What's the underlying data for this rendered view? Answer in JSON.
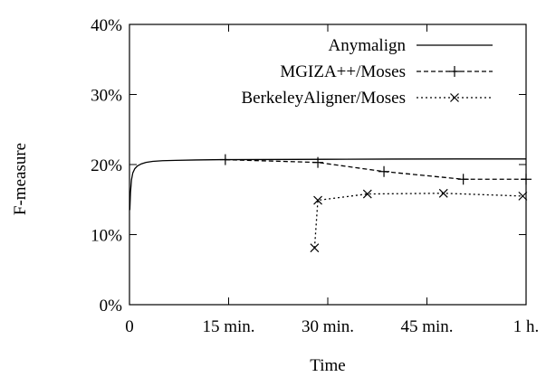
{
  "chart_data": {
    "type": "line",
    "xlabel": "Time",
    "ylabel": "F-measure",
    "xlim": [
      0,
      60
    ],
    "ylim": [
      0,
      40
    ],
    "x_unit": "minutes",
    "y_unit": "percent",
    "grid": false,
    "legend_position": "top-right",
    "x_ticks": [
      {
        "value": 0,
        "label": "0"
      },
      {
        "value": 15,
        "label": "15 min."
      },
      {
        "value": 30,
        "label": "30 min."
      },
      {
        "value": 45,
        "label": "45 min."
      },
      {
        "value": 60,
        "label": "1 h."
      }
    ],
    "y_ticks": [
      {
        "value": 0,
        "label": "0%"
      },
      {
        "value": 10,
        "label": "10%"
      },
      {
        "value": 20,
        "label": "20%"
      },
      {
        "value": 30,
        "label": "30%"
      },
      {
        "value": 40,
        "label": "40%"
      }
    ],
    "series": [
      {
        "name": "Anymalign",
        "style": "solid",
        "marker": "none",
        "color": "#000000",
        "x": [
          0.05,
          0.15,
          0.3,
          0.5,
          0.8,
          1.2,
          1.8,
          2.5,
          3.5,
          5,
          7,
          10,
          14,
          20,
          30,
          40,
          50,
          60
        ],
        "y": [
          13.5,
          16.0,
          17.8,
          18.8,
          19.4,
          19.8,
          20.1,
          20.3,
          20.45,
          20.55,
          20.6,
          20.65,
          20.7,
          20.72,
          20.75,
          20.78,
          20.8,
          20.8
        ]
      },
      {
        "name": "MGIZA++/Moses",
        "style": "dashed",
        "marker": "plus",
        "color": "#000000",
        "x": [
          14.5,
          28.5,
          38.5,
          50.5,
          60
        ],
        "y": [
          20.7,
          20.3,
          19.0,
          17.9,
          17.9
        ]
      },
      {
        "name": "BerkeleyAligner/Moses",
        "style": "dotted",
        "marker": "cross",
        "color": "#000000",
        "x": [
          28,
          28.5,
          36,
          47.5,
          59.5
        ],
        "y": [
          8.1,
          14.9,
          15.8,
          15.9,
          15.5
        ]
      }
    ]
  }
}
